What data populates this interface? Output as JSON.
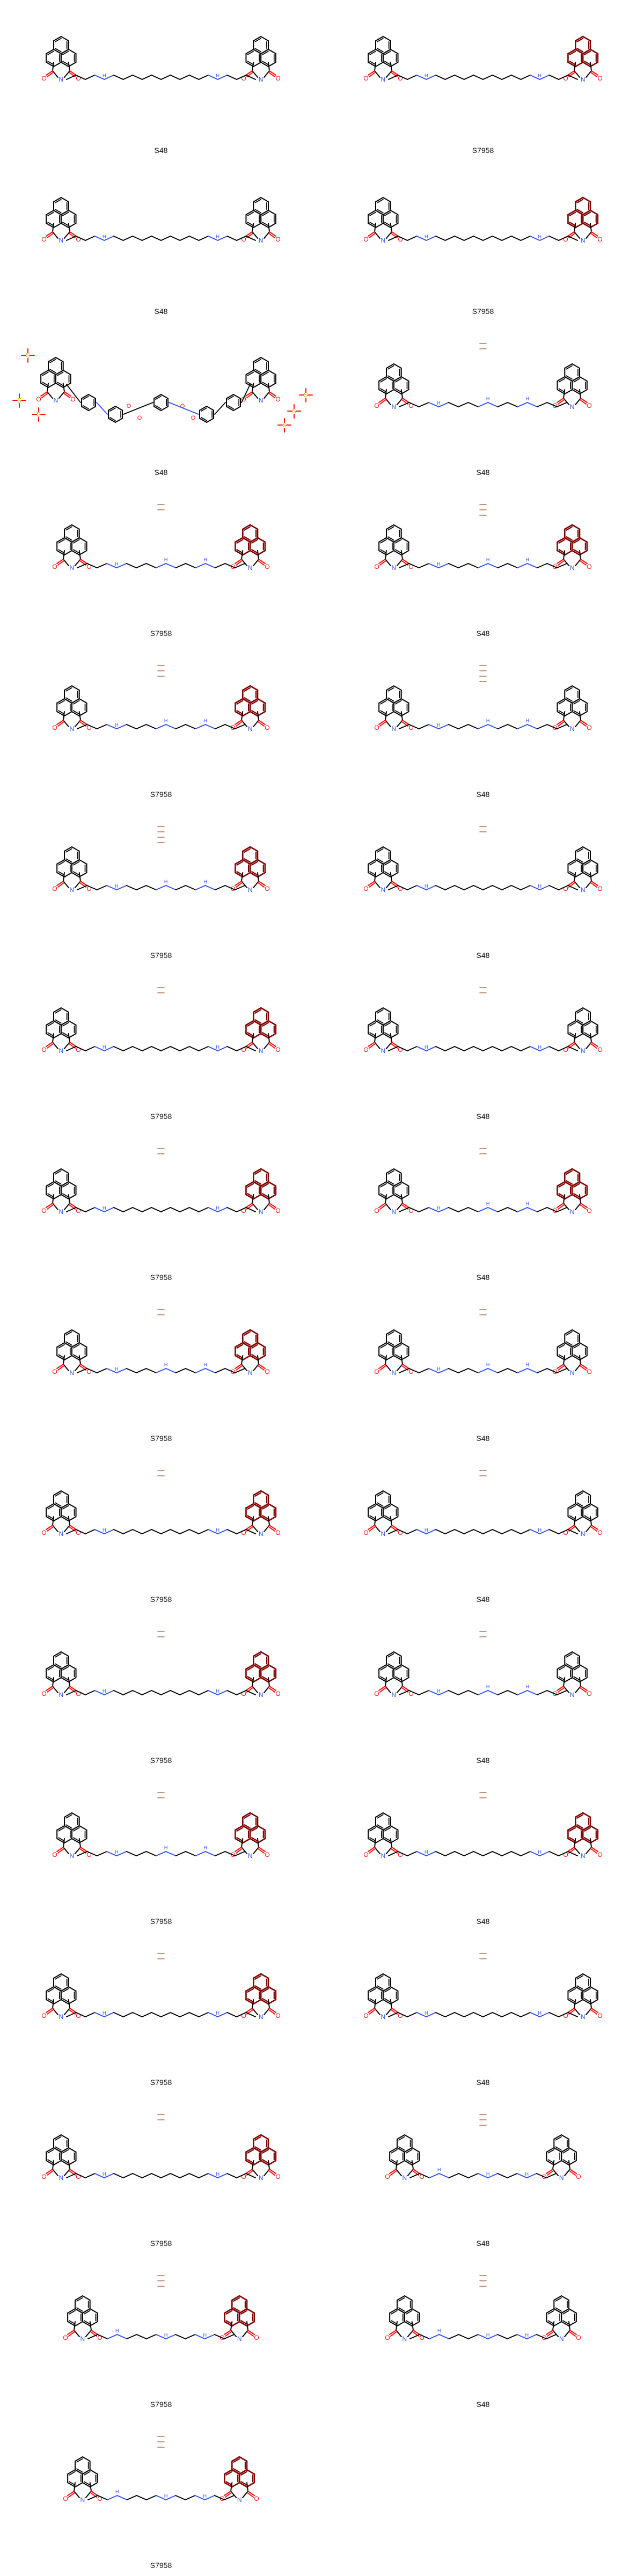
{
  "grid": {
    "cells": [
      {
        "id": "c1",
        "label": "S48",
        "variant": "long",
        "dark_right": false,
        "salt": 0
      },
      {
        "id": "c2",
        "label": "S7958",
        "variant": "long",
        "dark_right": true,
        "salt": 0
      },
      {
        "id": "c3",
        "label": "S48",
        "variant": "long",
        "dark_right": false,
        "salt": 0
      },
      {
        "id": "c4",
        "label": "S7958",
        "variant": "long",
        "dark_right": true,
        "salt": 0
      },
      {
        "id": "c5",
        "label": "S48",
        "variant": "sulfonated",
        "dark_right": false,
        "salt": 0
      },
      {
        "id": "c6",
        "label": "S48",
        "variant": "medium",
        "dark_right": false,
        "salt": 2
      },
      {
        "id": "c7",
        "label": "S7958",
        "variant": "medium",
        "dark_right": true,
        "salt": 2
      },
      {
        "id": "c8",
        "label": "S48",
        "variant": "medium",
        "dark_right": true,
        "salt": 3
      },
      {
        "id": "c9",
        "label": "S7958",
        "variant": "medium",
        "dark_right": true,
        "salt": 3
      },
      {
        "id": "c10",
        "label": "S48",
        "variant": "medium",
        "dark_right": false,
        "salt": 4
      },
      {
        "id": "c11",
        "label": "S7958",
        "variant": "medium",
        "dark_right": true,
        "salt": 4
      },
      {
        "id": "c12",
        "label": "S48",
        "variant": "long",
        "dark_right": false,
        "salt": 2
      },
      {
        "id": "c13",
        "label": "S7958",
        "variant": "long",
        "dark_right": true,
        "salt": 2
      },
      {
        "id": "c14",
        "label": "S48",
        "variant": "long",
        "dark_right": false,
        "salt": 2
      },
      {
        "id": "c15",
        "label": "S7958",
        "variant": "long",
        "dark_right": true,
        "salt": 2
      },
      {
        "id": "c16",
        "label": "S48",
        "variant": "medium",
        "dark_right": true,
        "salt": 2
      },
      {
        "id": "c17",
        "label": "S7958",
        "variant": "medium",
        "dark_right": true,
        "salt": 2
      },
      {
        "id": "c18",
        "label": "S48",
        "variant": "medium",
        "dark_right": false,
        "salt": 2
      },
      {
        "id": "c19",
        "label": "S7958",
        "variant": "long",
        "dark_right": true,
        "salt": 2
      },
      {
        "id": "c20",
        "label": "S48",
        "variant": "long",
        "dark_right": false,
        "salt": 2
      },
      {
        "id": "c21",
        "label": "S7958",
        "variant": "long",
        "dark_right": true,
        "salt": 2
      },
      {
        "id": "c22",
        "label": "S48",
        "variant": "medium",
        "dark_right": false,
        "salt": 2
      },
      {
        "id": "c23",
        "label": "S7958",
        "variant": "medium",
        "dark_right": true,
        "salt": 2
      },
      {
        "id": "c24",
        "label": "S48",
        "variant": "long",
        "dark_right": true,
        "salt": 2
      },
      {
        "id": "c25",
        "label": "S7958",
        "variant": "long",
        "dark_right": true,
        "salt": 2
      },
      {
        "id": "c26",
        "label": "S48",
        "variant": "long",
        "dark_right": false,
        "salt": 2
      },
      {
        "id": "c27",
        "label": "S7958",
        "variant": "long",
        "dark_right": true,
        "salt": 2
      },
      {
        "id": "c28",
        "label": "S48",
        "variant": "short",
        "dark_right": false,
        "salt": 3
      },
      {
        "id": "c29",
        "label": "S7958",
        "variant": "short",
        "dark_right": true,
        "salt": 3
      },
      {
        "id": "c30",
        "label": "S48",
        "variant": "short",
        "dark_right": false,
        "salt": 3
      },
      {
        "id": "c31",
        "label": "S7958",
        "variant": "short",
        "dark_right": true,
        "salt": 3
      }
    ]
  },
  "colors": {
    "bond": "#000000",
    "oxygen": "#ff0d0d",
    "nitrogen": "#3050f8",
    "dark_ring": "#7f0000",
    "sulfur": "#d4aa00",
    "salt": "#b07050"
  }
}
